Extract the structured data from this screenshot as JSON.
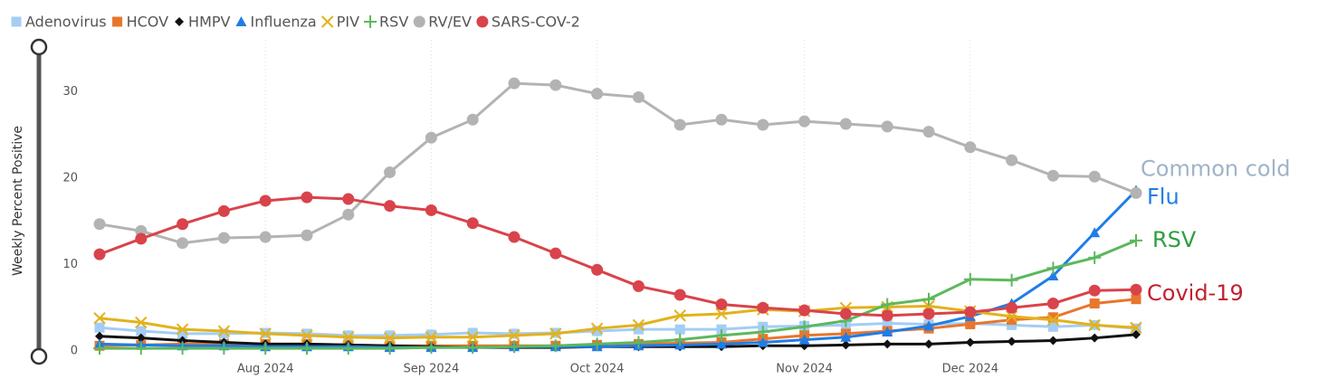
{
  "chart_data": {
    "type": "line",
    "y_axis_label": "Weekly Percent Positive",
    "categories": [
      null,
      null,
      null,
      null,
      "Aug 2024",
      null,
      null,
      null,
      "Sep 2024",
      null,
      null,
      null,
      "Oct 2024",
      null,
      null,
      null,
      null,
      "Nov 2024",
      null,
      null,
      null,
      "Dec 2024",
      null,
      null,
      null,
      null
    ],
    "ylim": [
      0,
      35
    ],
    "yticks": [
      0,
      10,
      20,
      30
    ],
    "grid": "x",
    "legend": "top-left",
    "series": [
      {
        "name": "Adenovirus",
        "color": "#a3cdf5",
        "marker": "square",
        "values": [
          2.7,
          2.3,
          2.0,
          2.0,
          2.1,
          2.0,
          1.8,
          1.8,
          1.9,
          2.1,
          2.0,
          2.1,
          2.3,
          2.5,
          2.5,
          2.5,
          2.8,
          2.9,
          3.0,
          3.2,
          3.1,
          3.2,
          3.0,
          2.8,
          3.0,
          2.6
        ]
      },
      {
        "name": "HCOV",
        "color": "#e8762c",
        "marker": "square",
        "values": [
          0.6,
          0.7,
          0.8,
          0.8,
          0.8,
          0.8,
          0.7,
          0.6,
          0.6,
          0.6,
          0.6,
          0.6,
          0.7,
          0.8,
          0.9,
          1.0,
          1.4,
          1.8,
          2.0,
          2.3,
          2.6,
          3.1,
          3.6,
          3.9,
          5.5,
          6.0
        ]
      },
      {
        "name": "HMPV",
        "color": "#111111",
        "marker": "diamond",
        "values": [
          1.7,
          1.5,
          1.2,
          1.0,
          0.8,
          0.8,
          0.7,
          0.6,
          0.5,
          0.4,
          0.4,
          0.4,
          0.5,
          0.5,
          0.5,
          0.5,
          0.6,
          0.6,
          0.7,
          0.8,
          0.8,
          1.0,
          1.1,
          1.2,
          1.5,
          1.9
        ]
      },
      {
        "name": "Influenza",
        "color": "#1f7de8",
        "marker": "triangle",
        "values": [
          0.8,
          0.7,
          0.6,
          0.6,
          0.5,
          0.5,
          0.5,
          0.4,
          0.4,
          0.4,
          0.5,
          0.5,
          0.5,
          0.6,
          0.7,
          0.8,
          1.0,
          1.3,
          1.6,
          2.2,
          2.9,
          4.0,
          5.5,
          8.7,
          13.7,
          18.6
        ],
        "end_label": "Flu",
        "end_label_color": "#1f7de8"
      },
      {
        "name": "PIV",
        "color": "#e2b21c",
        "marker": "x",
        "values": [
          3.8,
          3.3,
          2.5,
          2.3,
          2.0,
          1.8,
          1.6,
          1.5,
          1.6,
          1.6,
          1.8,
          2.0,
          2.6,
          3.0,
          4.1,
          4.3,
          4.8,
          4.6,
          5.0,
          5.1,
          5.2,
          4.6,
          4.0,
          3.6,
          3.0,
          2.7
        ]
      },
      {
        "name": "RSV",
        "color": "#5cb85c",
        "marker": "plus",
        "values": [
          0.3,
          0.3,
          0.3,
          0.3,
          0.3,
          0.3,
          0.3,
          0.3,
          0.4,
          0.4,
          0.5,
          0.6,
          0.8,
          1.0,
          1.3,
          1.8,
          2.2,
          2.8,
          3.5,
          5.4,
          6.0,
          8.3,
          8.2,
          9.6,
          10.8,
          12.8
        ],
        "end_label": "RSV",
        "end_label_color": "#2e9e3e"
      },
      {
        "name": "RV/EV",
        "color": "#b3b3b3",
        "marker": "circle",
        "values": [
          14.7,
          13.9,
          12.5,
          13.1,
          13.2,
          13.4,
          15.8,
          20.7,
          24.7,
          26.8,
          31.0,
          30.8,
          29.8,
          29.4,
          26.2,
          26.8,
          26.2,
          26.6,
          26.3,
          26.0,
          25.4,
          23.6,
          22.1,
          20.3,
          20.2,
          18.3
        ],
        "end_label": "Common cold",
        "end_label_color": "#9fb3c8"
      },
      {
        "name": "SARS-COV-2",
        "color": "#d9434b",
        "marker": "circle",
        "values": [
          11.2,
          13.0,
          14.7,
          16.2,
          17.4,
          17.8,
          17.6,
          16.8,
          16.3,
          14.8,
          13.2,
          11.3,
          9.4,
          7.5,
          6.5,
          5.4,
          5.0,
          4.7,
          4.3,
          4.1,
          4.3,
          4.5,
          5.0,
          5.5,
          7.0,
          7.1
        ],
        "end_label": "Covid-19",
        "end_label_color": "#c0222f"
      }
    ]
  }
}
